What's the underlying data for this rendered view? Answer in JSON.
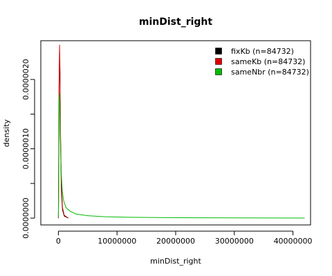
{
  "chart_data": {
    "type": "line",
    "title": "minDist_right",
    "xlabel": "minDist_right",
    "ylabel": "density",
    "xlim": [
      -3000000,
      43000000
    ],
    "ylim": [
      -9.84e-08,
      2.5584e-06
    ],
    "x_ticks": [
      {
        "value": 0,
        "label": "0"
      },
      {
        "value": 10000000,
        "label": "10000000"
      },
      {
        "value": 20000000,
        "label": "20000000"
      },
      {
        "value": 30000000,
        "label": "30000000"
      },
      {
        "value": 40000000,
        "label": "40000000"
      }
    ],
    "y_ticks": [
      {
        "value": 0,
        "label": "0.0000000"
      },
      {
        "value": 5e-07,
        "label": ""
      },
      {
        "value": 1e-06,
        "label": "0.0000010"
      },
      {
        "value": 1.5e-06,
        "label": ""
      },
      {
        "value": 2e-06,
        "label": "0.0000020"
      }
    ],
    "legend": {
      "position": "top-right"
    },
    "series": [
      {
        "name": "fixKb (n=84732)",
        "color": "#000000",
        "points": [
          [
            0,
            0
          ],
          [
            50000,
            7e-07
          ],
          [
            120000,
            1.9e-06
          ],
          [
            200000,
            2.4e-06
          ],
          [
            280000,
            2e-06
          ],
          [
            350000,
            1.2e-06
          ],
          [
            500000,
            4e-07
          ],
          [
            700000,
            1.2e-07
          ],
          [
            1000000,
            3e-08
          ],
          [
            1700000,
            0
          ]
        ]
      },
      {
        "name": "sameKb (n=84732)",
        "color": "#dd0000",
        "points": [
          [
            0,
            0
          ],
          [
            50000,
            8e-07
          ],
          [
            120000,
            2e-06
          ],
          [
            200000,
            2.5e-06
          ],
          [
            280000,
            2.1e-06
          ],
          [
            350000,
            1.3e-06
          ],
          [
            500000,
            5e-07
          ],
          [
            700000,
            1.5e-07
          ],
          [
            1000000,
            4e-08
          ],
          [
            1700000,
            0
          ]
        ]
      },
      {
        "name": "sameNbr (n=84732)",
        "color": "#00bb00",
        "points": [
          [
            0,
            2e-08
          ],
          [
            60000,
            6e-07
          ],
          [
            150000,
            1.7e-06
          ],
          [
            230000,
            1.8e-06
          ],
          [
            320000,
            1.2e-06
          ],
          [
            450000,
            7e-07
          ],
          [
            650000,
            4e-07
          ],
          [
            900000,
            2.5e-07
          ],
          [
            1300000,
            1.5e-07
          ],
          [
            2000000,
            1e-07
          ],
          [
            3000000,
            6e-08
          ],
          [
            5000000,
            3.5e-08
          ],
          [
            8000000,
            2e-08
          ],
          [
            12000000,
            1.2e-08
          ],
          [
            20000000,
            6e-09
          ],
          [
            30000000,
            3e-09
          ],
          [
            42000000,
            1e-09
          ]
        ]
      }
    ]
  }
}
